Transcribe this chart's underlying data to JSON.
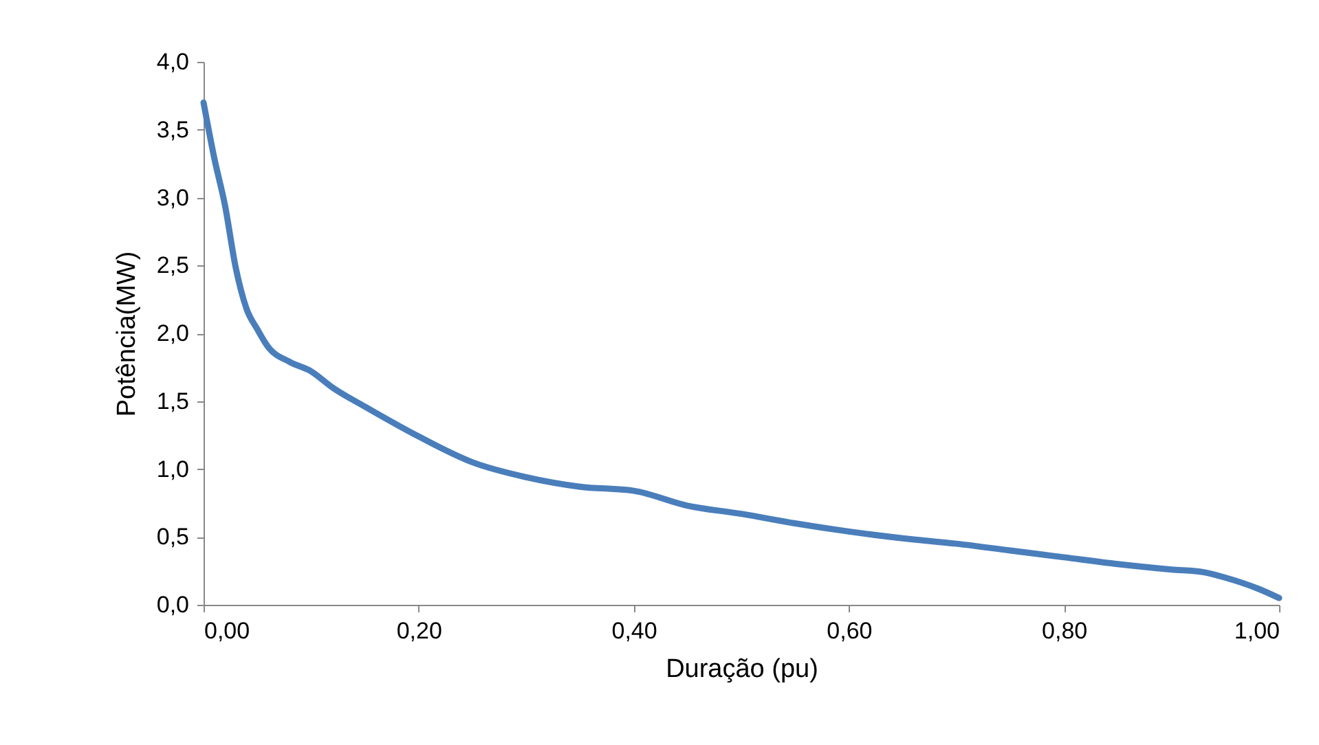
{
  "chart_data": {
    "type": "line",
    "xlabel": "Duração (pu)",
    "ylabel": "Potência(MW)",
    "x": [
      0,
      0.01,
      0.02,
      0.03,
      0.04,
      0.05,
      0.06,
      0.08,
      0.1,
      0.12,
      0.15,
      0.2,
      0.25,
      0.3,
      0.35,
      0.4,
      0.45,
      0.5,
      0.55,
      0.6,
      0.65,
      0.7,
      0.75,
      0.8,
      0.85,
      0.9,
      0.93,
      0.95,
      0.98,
      1.0
    ],
    "series": [
      {
        "color": "#4a7ebb",
        "values": [
          3.7,
          3.29,
          2.94,
          2.48,
          2.18,
          2.03,
          1.9,
          1.79,
          1.72,
          1.6,
          1.46,
          1.24,
          1.05,
          0.94,
          0.87,
          0.84,
          0.73,
          0.67,
          0.6,
          0.54,
          0.49,
          0.45,
          0.4,
          0.35,
          0.3,
          0.26,
          0.24,
          0.2,
          0.12,
          0.05
        ]
      }
    ],
    "xlim": [
      0,
      1
    ],
    "xticks": [
      {
        "value": 0,
        "label": "0,00"
      },
      {
        "value": 0.2,
        "label": "0,20"
      },
      {
        "value": 0.4,
        "label": "0,40"
      },
      {
        "value": 0.6,
        "label": "0,60"
      },
      {
        "value": 0.8,
        "label": "0,80"
      },
      {
        "value": 1,
        "label": "1,00"
      }
    ],
    "ylim": [
      0,
      4
    ],
    "yticks": [
      {
        "value": 0,
        "label": "0,0"
      },
      {
        "value": 0.5,
        "label": "0,5"
      },
      {
        "value": 1,
        "label": "1,0"
      },
      {
        "value": 1.5,
        "label": "1,5"
      },
      {
        "value": 2,
        "label": "2,0"
      },
      {
        "value": 2.5,
        "label": "2,5"
      },
      {
        "value": 3,
        "label": "3,0"
      },
      {
        "value": 3.5,
        "label": "3,5"
      },
      {
        "value": 4,
        "label": "4,0"
      }
    ],
    "grid": false,
    "marker": "none",
    "line_style": "solid"
  }
}
